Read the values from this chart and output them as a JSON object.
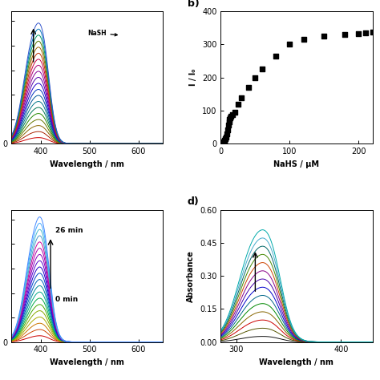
{
  "panel_a": {
    "wavelength_range": [
      340,
      650
    ],
    "peak1": 385,
    "peak2": 407,
    "sigma1": 20,
    "sigma2": 13,
    "n_curves": 20,
    "colors_ordered": [
      "#cc0000",
      "#aa2200",
      "#886600",
      "#667700",
      "#228800",
      "#007755",
      "#007788",
      "#005599",
      "#0033bb",
      "#2200cc",
      "#5500aa",
      "#880099",
      "#aa0077",
      "#cc0044",
      "#bb3300",
      "#996600",
      "#557700",
      "#009966",
      "#0077bb",
      "#3355cc"
    ],
    "xlabel": "Wavelength / nm",
    "xlim": [
      340,
      650
    ],
    "xticks": [
      400,
      500,
      600
    ]
  },
  "panel_b": {
    "x": [
      0,
      1,
      2,
      3,
      4,
      5,
      6,
      7,
      8,
      9,
      10,
      11,
      12,
      13,
      14,
      15,
      17,
      20,
      25,
      30,
      40,
      50,
      60,
      80,
      100,
      120,
      150,
      180,
      200,
      210,
      220
    ],
    "y": [
      0,
      1,
      2,
      3,
      5,
      7,
      10,
      14,
      20,
      30,
      42,
      55,
      65,
      72,
      78,
      82,
      88,
      95,
      120,
      138,
      170,
      200,
      225,
      265,
      300,
      315,
      325,
      330,
      333,
      335,
      337
    ],
    "xlabel": "NaHS / μM",
    "ylabel": "I / I₀",
    "xlim": [
      0,
      220
    ],
    "ylim": [
      0,
      400
    ],
    "xticks": [
      0,
      100,
      200
    ],
    "yticks": [
      0,
      100,
      200,
      300,
      400
    ]
  },
  "panel_c": {
    "wavelength_range": [
      340,
      650
    ],
    "peak1": 388,
    "peak2": 408,
    "sigma1": 20,
    "sigma2": 13,
    "n_curves": 20,
    "colors_ordered": [
      "#cc0000",
      "#cc4400",
      "#cc7700",
      "#aaaa00",
      "#88aa00",
      "#44aa00",
      "#00aa44",
      "#00aa88",
      "#008899",
      "#0066bb",
      "#0044cc",
      "#2200cc",
      "#5500cc",
      "#8800bb",
      "#aa00aa",
      "#cc0099",
      "#4499cc",
      "#44bbcc",
      "#44aaff",
      "#4488ff"
    ],
    "xlabel": "Wavelength / nm",
    "xlim": [
      340,
      650
    ],
    "xticks": [
      400,
      500,
      600
    ],
    "annotation_top": "26 min",
    "annotation_bot": "0 min"
  },
  "panel_d": {
    "wavelength_range": [
      285,
      430
    ],
    "peak1": 318,
    "peak2": 335,
    "sigma1": 16,
    "sigma2": 10,
    "n_curves": 14,
    "colors_ordered": [
      "#111111",
      "#555500",
      "#cc0000",
      "#886600",
      "#008800",
      "#006688",
      "#0000cc",
      "#4400aa",
      "#880088",
      "#cc4400",
      "#448800",
      "#006666",
      "#44aacc",
      "#00aaaa"
    ],
    "xlabel": "Wavelength / nm",
    "ylabel": "Absorbance",
    "xlim": [
      285,
      430
    ],
    "xticks": [
      300,
      400
    ],
    "ylim": [
      0,
      0.6
    ],
    "yticks": [
      0.0,
      0.15,
      0.3,
      0.45,
      0.6
    ]
  },
  "background_color": "#ffffff"
}
